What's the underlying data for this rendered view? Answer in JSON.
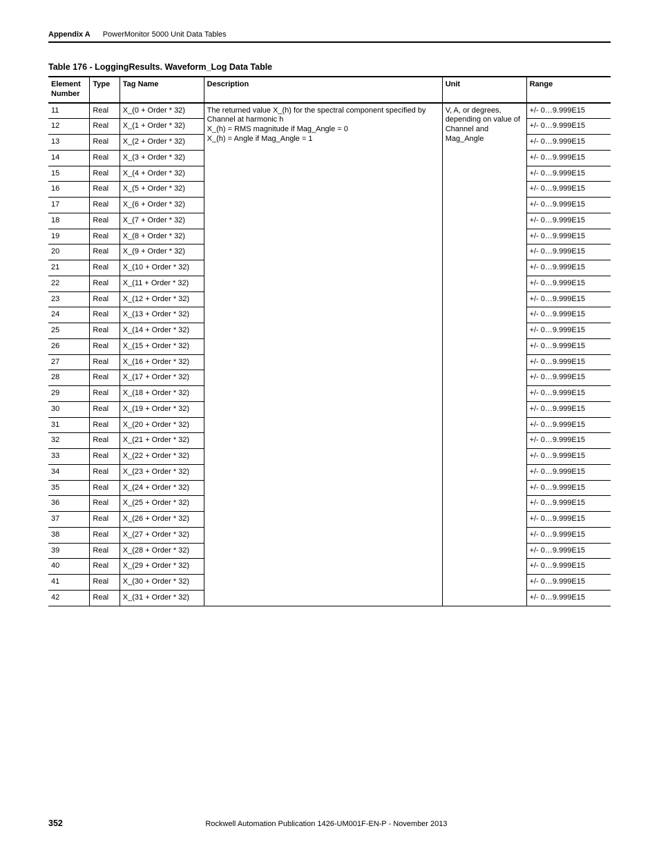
{
  "header": {
    "appendix_label": "Appendix A",
    "section_title": "PowerMonitor 5000 Unit Data Tables"
  },
  "table": {
    "caption": "Table 176 - LoggingResults. Waveform_Log Data Table",
    "columns": {
      "element": "Element Number",
      "type": "Type",
      "tag": "Tag Name",
      "description": "Description",
      "unit": "Unit",
      "range": "Range"
    },
    "shared": {
      "description": "The returned value X_(h) for the spectral component specified by Channel at harmonic h\nX_(h) = RMS magnitude if Mag_Angle = 0\nX_(h) = Angle if Mag_Angle = 1",
      "unit": "V, A, or degrees, depending on value of Channel and Mag_Angle"
    },
    "rows": [
      {
        "n": "11",
        "type": "Real",
        "tag": "X_(0 + Order * 32)",
        "range": "+/- 0…9.999E15"
      },
      {
        "n": "12",
        "type": "Real",
        "tag": "X_(1 + Order * 32)",
        "range": "+/- 0…9.999E15"
      },
      {
        "n": "13",
        "type": "Real",
        "tag": "X_(2 + Order * 32)",
        "range": "+/- 0…9.999E15"
      },
      {
        "n": "14",
        "type": "Real",
        "tag": "X_(3 + Order * 32)",
        "range": "+/- 0…9.999E15"
      },
      {
        "n": "15",
        "type": "Real",
        "tag": "X_(4 + Order * 32)",
        "range": "+/- 0…9.999E15"
      },
      {
        "n": "16",
        "type": "Real",
        "tag": "X_(5 + Order * 32)",
        "range": "+/- 0…9.999E15"
      },
      {
        "n": "17",
        "type": "Real",
        "tag": "X_(6 + Order * 32)",
        "range": "+/- 0…9.999E15"
      },
      {
        "n": "18",
        "type": "Real",
        "tag": "X_(7 + Order * 32)",
        "range": "+/- 0…9.999E15"
      },
      {
        "n": "19",
        "type": "Real",
        "tag": "X_(8 + Order * 32)",
        "range": "+/- 0…9.999E15"
      },
      {
        "n": "20",
        "type": "Real",
        "tag": "X_(9 + Order * 32)",
        "range": "+/- 0…9.999E15"
      },
      {
        "n": "21",
        "type": "Real",
        "tag": "X_(10 + Order * 32)",
        "range": "+/- 0…9.999E15"
      },
      {
        "n": "22",
        "type": "Real",
        "tag": "X_(11 + Order * 32)",
        "range": "+/- 0…9.999E15"
      },
      {
        "n": "23",
        "type": "Real",
        "tag": "X_(12 + Order * 32)",
        "range": "+/- 0…9.999E15"
      },
      {
        "n": "24",
        "type": "Real",
        "tag": "X_(13 + Order * 32)",
        "range": "+/- 0…9.999E15"
      },
      {
        "n": "25",
        "type": "Real",
        "tag": "X_(14 + Order * 32)",
        "range": "+/- 0…9.999E15"
      },
      {
        "n": "26",
        "type": "Real",
        "tag": "X_(15 + Order * 32)",
        "range": "+/- 0…9.999E15"
      },
      {
        "n": "27",
        "type": "Real",
        "tag": "X_(16 + Order * 32)",
        "range": "+/- 0…9.999E15"
      },
      {
        "n": "28",
        "type": "Real",
        "tag": "X_(17 + Order * 32)",
        "range": "+/- 0…9.999E15"
      },
      {
        "n": "29",
        "type": "Real",
        "tag": "X_(18 + Order * 32)",
        "range": "+/- 0…9.999E15"
      },
      {
        "n": "30",
        "type": "Real",
        "tag": "X_(19 + Order * 32)",
        "range": "+/- 0…9.999E15"
      },
      {
        "n": "31",
        "type": "Real",
        "tag": "X_(20 + Order * 32)",
        "range": "+/- 0…9.999E15"
      },
      {
        "n": "32",
        "type": "Real",
        "tag": "X_(21 + Order * 32)",
        "range": "+/- 0…9.999E15"
      },
      {
        "n": "33",
        "type": "Real",
        "tag": "X_(22 + Order * 32)",
        "range": "+/- 0…9.999E15"
      },
      {
        "n": "34",
        "type": "Real",
        "tag": "X_(23 + Order * 32)",
        "range": "+/- 0…9.999E15"
      },
      {
        "n": "35",
        "type": "Real",
        "tag": "X_(24 + Order * 32)",
        "range": "+/- 0…9.999E15"
      },
      {
        "n": "36",
        "type": "Real",
        "tag": "X_(25 + Order * 32)",
        "range": "+/- 0…9.999E15"
      },
      {
        "n": "37",
        "type": "Real",
        "tag": "X_(26 + Order * 32)",
        "range": "+/- 0…9.999E15"
      },
      {
        "n": "38",
        "type": "Real",
        "tag": "X_(27 + Order * 32)",
        "range": "+/- 0…9.999E15"
      },
      {
        "n": "39",
        "type": "Real",
        "tag": "X_(28 + Order * 32)",
        "range": "+/- 0…9.999E15"
      },
      {
        "n": "40",
        "type": "Real",
        "tag": "X_(29 + Order * 32)",
        "range": "+/- 0…9.999E15"
      },
      {
        "n": "41",
        "type": "Real",
        "tag": "X_(30 + Order * 32)",
        "range": "+/- 0…9.999E15"
      },
      {
        "n": "42",
        "type": "Real",
        "tag": "X_(31 + Order * 32)",
        "range": "+/- 0…9.999E15"
      }
    ]
  },
  "footer": {
    "page_number": "352",
    "publication": "Rockwell Automation Publication 1426-UM001F-EN-P - November 2013"
  }
}
